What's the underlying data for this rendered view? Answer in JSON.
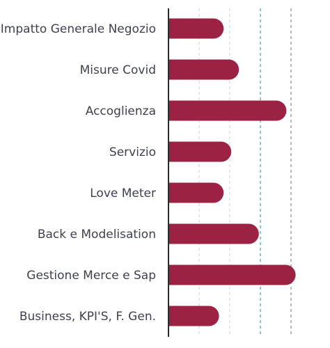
{
  "chart_data": {
    "type": "bar",
    "orientation": "horizontal",
    "categories": [
      "Impatto Generale Negozio",
      "Misure Covid",
      "Accoglienza",
      "Servizio",
      "Love Meter",
      "Back e Modelisation",
      "Gestione Merce e Sap",
      "Business, KPI'S, F. Gen."
    ],
    "values": [
      3.6,
      4.6,
      7.7,
      4.1,
      3.6,
      5.9,
      8.3,
      3.3
    ],
    "xlim": [
      0,
      10
    ],
    "grid": true,
    "title": "",
    "xlabel": "",
    "ylabel": "",
    "colors": {
      "bar": "#9b2242",
      "label": "#3f3f52",
      "axis": "#2b2b2b",
      "grid": "#cfcfd4",
      "reference_line": "#3fb597",
      "target_line": "#8e8e9e"
    }
  }
}
